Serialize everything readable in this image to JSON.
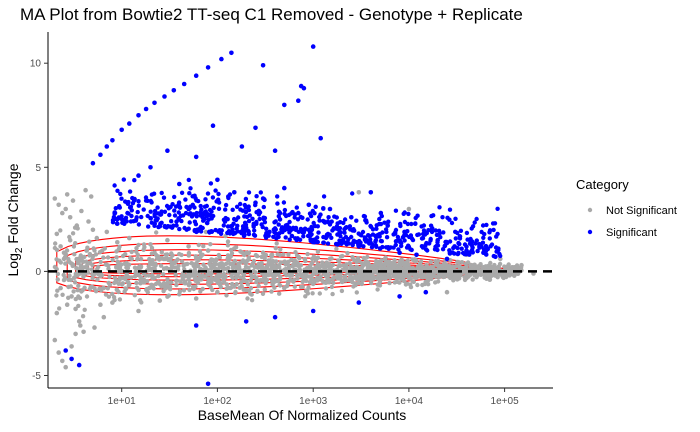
{
  "chart_data": {
    "type": "scatter",
    "title": "MA Plot from Bowtie2 TT-seq C1 Removed - Genotype + Replicate",
    "xlabel": "BaseMean Of Normalized Counts",
    "ylabel_main": "Log",
    "ylabel_sub": "2",
    "ylabel_suffix": " Fold Change",
    "x_scale": "log10",
    "xlim": [
      1.7,
      320000
    ],
    "ylim": [
      -5.6,
      11.5
    ],
    "x_ticks": [
      10,
      100,
      1000,
      10000,
      100000
    ],
    "x_tick_labels": [
      "1e+01",
      "1e+02",
      "1e+03",
      "1e+04",
      "1e+05"
    ],
    "y_ticks": [
      -5,
      0,
      5,
      10
    ],
    "y_tick_labels": [
      "-5",
      "0",
      "5",
      "10"
    ],
    "grid": false,
    "reference_line": {
      "y": 0,
      "style": "dashed",
      "color": "#000000"
    },
    "legend": {
      "title": "Category",
      "placement": "right",
      "entries": [
        {
          "label": "Not Significant",
          "color": "#a9a9a9"
        },
        {
          "label": "Significant",
          "color": "#0000ff"
        }
      ]
    },
    "density_contour_color": "#ff0000",
    "series": [
      {
        "name": "Not Significant",
        "color": "#a9a9a9",
        "points": [
          [
            2.0,
            3.5
          ],
          [
            2.2,
            3.2
          ],
          [
            2.4,
            2.8
          ],
          [
            2.6,
            3.0
          ],
          [
            2.9,
            2.6
          ],
          [
            3.1,
            3.4
          ],
          [
            3.4,
            2.2
          ],
          [
            3.8,
            2.9
          ],
          [
            2.1,
            1.8
          ],
          [
            2.3,
            1.2
          ],
          [
            2.5,
            0.6
          ],
          [
            2.8,
            -0.4
          ],
          [
            3.0,
            -1.2
          ],
          [
            3.3,
            -1.8
          ],
          [
            3.6,
            -2.4
          ],
          [
            4.0,
            -2.9
          ],
          [
            2.0,
            -3.3
          ],
          [
            2.2,
            -3.9
          ],
          [
            2.4,
            -4.3
          ],
          [
            2.6,
            -4.6
          ],
          [
            3.0,
            -3.6
          ],
          [
            3.3,
            -3.0
          ],
          [
            3.7,
            -2.6
          ],
          [
            2.1,
            -2.0
          ],
          [
            4.5,
            2.4
          ],
          [
            5.0,
            2.0
          ],
          [
            5.5,
            1.6
          ],
          [
            6.0,
            -1.6
          ],
          [
            6.5,
            -2.2
          ],
          [
            7.0,
            1.9
          ],
          [
            8.0,
            -1.5
          ],
          [
            9.0,
            1.4
          ],
          [
            4.2,
            3.9
          ],
          [
            4.8,
            3.6
          ],
          [
            2.7,
            3.7
          ],
          [
            5.2,
            -2.7
          ],
          [
            12,
            1.6
          ],
          [
            15,
            -1.9
          ],
          [
            20,
            1.3
          ],
          [
            25,
            -1.4
          ],
          [
            30,
            1.5
          ],
          [
            40,
            -1.1
          ],
          [
            50,
            1.2
          ],
          [
            60,
            -1.3
          ],
          [
            80,
            1.0
          ],
          [
            100,
            -1.0
          ],
          [
            150,
            1.1
          ],
          [
            200,
            -0.9
          ],
          [
            300,
            0.9
          ],
          [
            500,
            -0.8
          ],
          [
            700,
            0.7
          ],
          [
            1000,
            -0.6
          ],
          [
            1500,
            0.6
          ],
          [
            2000,
            -0.5
          ],
          [
            3000,
            0.5
          ],
          [
            5000,
            -0.4
          ],
          [
            8000,
            0.4
          ],
          [
            12000,
            -0.3
          ],
          [
            20000,
            0.3
          ],
          [
            30000,
            -0.3
          ],
          [
            50000,
            0.2
          ],
          [
            80000,
            -0.2
          ],
          [
            120000,
            0.2
          ],
          [
            200000,
            -0.1
          ],
          [
            3000,
            3.8
          ],
          [
            6000,
            2.3
          ],
          [
            10000,
            3.0
          ],
          [
            40000,
            0.8
          ],
          [
            90000,
            0.6
          ],
          [
            25000,
            -1.0
          ],
          [
            70000,
            -0.4
          ],
          [
            150000,
            0.3
          ],
          [
            2.3,
            -0.8
          ],
          [
            2.5,
            0.9
          ],
          [
            2.7,
            -1.6
          ],
          [
            2.9,
            1.5
          ],
          [
            3.2,
            -0.3
          ],
          [
            3.5,
            0.4
          ],
          [
            3.9,
            -0.9
          ],
          [
            4.3,
            1.0
          ]
        ]
      },
      {
        "name": "Significant",
        "color": "#0000ff",
        "points": [
          [
            5.0,
            5.2
          ],
          [
            6.0,
            5.6
          ],
          [
            7.0,
            6.0
          ],
          [
            8.0,
            6.3
          ],
          [
            10,
            6.8
          ],
          [
            12,
            7.1
          ],
          [
            15,
            7.5
          ],
          [
            18,
            7.8
          ],
          [
            22,
            8.1
          ],
          [
            28,
            8.4
          ],
          [
            35,
            8.7
          ],
          [
            45,
            9.0
          ],
          [
            60,
            9.4
          ],
          [
            80,
            9.8
          ],
          [
            110,
            10.2
          ],
          [
            140,
            10.5
          ],
          [
            1000,
            10.8
          ],
          [
            300,
            9.9
          ],
          [
            750,
            8.9
          ],
          [
            800,
            8.8
          ],
          [
            700,
            8.2
          ],
          [
            500,
            8.0
          ],
          [
            1200,
            6.4
          ],
          [
            400,
            5.8
          ],
          [
            250,
            6.9
          ],
          [
            180,
            6.0
          ],
          [
            90,
            7.0
          ],
          [
            60,
            5.5
          ],
          [
            30,
            5.8
          ],
          [
            20,
            5.0
          ],
          [
            15,
            4.6
          ],
          [
            40,
            4.2
          ],
          [
            100,
            4.4
          ],
          [
            150,
            3.8
          ],
          [
            300,
            3.5
          ],
          [
            500,
            4.0
          ],
          [
            900,
            3.2
          ],
          [
            1500,
            3.0
          ],
          [
            2500,
            2.6
          ],
          [
            4000,
            3.8
          ],
          [
            6000,
            2.2
          ],
          [
            9000,
            1.9
          ],
          [
            14000,
            1.6
          ],
          [
            20000,
            1.5
          ],
          [
            30000,
            1.2
          ],
          [
            40000,
            1.0
          ],
          [
            60000,
            0.9
          ],
          [
            80000,
            0.7
          ],
          [
            50,
            3.0
          ],
          [
            70,
            2.6
          ],
          [
            120,
            2.4
          ],
          [
            200,
            2.1
          ],
          [
            350,
            1.9
          ],
          [
            600,
            1.7
          ],
          [
            1000,
            1.5
          ],
          [
            1800,
            1.3
          ],
          [
            3000,
            1.2
          ],
          [
            5000,
            1.1
          ],
          [
            8000,
            0.9
          ],
          [
            12000,
            0.8
          ],
          [
            25000,
            0.6
          ],
          [
            200,
            -2.4
          ],
          [
            1000,
            -1.9
          ],
          [
            3000,
            -1.5
          ],
          [
            8000,
            -1.2
          ],
          [
            15000,
            -1.0
          ],
          [
            400,
            -2.2
          ],
          [
            60,
            -2.6
          ],
          [
            80,
            -5.4
          ],
          [
            3.0,
            -4.2
          ],
          [
            3.6,
            -4.5
          ],
          [
            2.6,
            -3.8
          ],
          [
            700,
            2.8
          ],
          [
            1300,
            2.4
          ],
          [
            2200,
            2.1
          ],
          [
            4500,
            1.7
          ],
          [
            250,
            3.3
          ],
          [
            130,
            3.6
          ],
          [
            450,
            2.5
          ],
          [
            900,
            2.0
          ]
        ]
      }
    ]
  }
}
